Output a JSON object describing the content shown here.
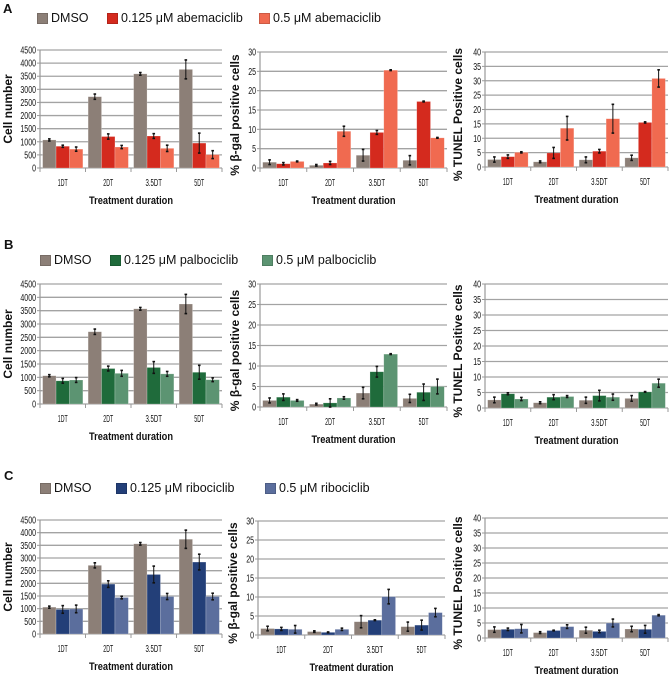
{
  "figure": {
    "panels": [
      {
        "label": "A",
        "legend": [
          {
            "name": "DMSO",
            "color": "#8c7f77"
          },
          {
            "name": "0.125 μM abemaciclib",
            "color": "#d42a1e"
          },
          {
            "name": "0.5 μM abemaciclib",
            "color": "#f06a50"
          }
        ]
      },
      {
        "label": "B",
        "legend": [
          {
            "name": "DMSO",
            "color": "#8c7f77"
          },
          {
            "name": "0.125 μM palbociclib",
            "color": "#1f6b3b"
          },
          {
            "name": "0.5 μM palbociclib",
            "color": "#5c9472"
          }
        ]
      },
      {
        "label": "C",
        "legend": [
          {
            "name": "DMSO",
            "color": "#8c7f77"
          },
          {
            "name": "0.125 μM ribociclib",
            "color": "#233f78"
          },
          {
            "name": "0.5 μM ribociclib",
            "color": "#5b6e9d"
          }
        ]
      }
    ]
  },
  "chart_data": [
    {
      "panel": "A",
      "type": "bar",
      "title": "",
      "xlabel": "Treatment duration",
      "ylabel": "Cell number",
      "categories": [
        "1DT",
        "2DT",
        "3.5DT",
        "5DT"
      ],
      "ylim": [
        0,
        4500
      ],
      "yticks": [
        0,
        500,
        1000,
        1500,
        2000,
        2500,
        3000,
        3500,
        4000,
        4500
      ],
      "grid": true,
      "legend": "top",
      "series": [
        {
          "name": "DMSO",
          "color": "#8c7f77",
          "values": [
            1070,
            2720,
            3590,
            3760
          ],
          "errors": [
            40,
            100,
            50,
            360
          ]
        },
        {
          "name": "0.125 μM abemaciclib",
          "color": "#d42a1e",
          "values": [
            830,
            1200,
            1220,
            950
          ],
          "errors": [
            40,
            100,
            90,
            380
          ]
        },
        {
          "name": "0.5 μM abemaciclib",
          "color": "#f06a50",
          "values": [
            720,
            800,
            750,
            510
          ],
          "errors": [
            80,
            60,
            120,
            150
          ]
        }
      ]
    },
    {
      "panel": "A",
      "type": "bar",
      "title": "",
      "xlabel": "Treatment duration",
      "ylabel": "% β-gal positive cells",
      "categories": [
        "1DT",
        "2DT",
        "3.5DT",
        "5DT"
      ],
      "ylim": [
        0,
        30
      ],
      "yticks": [
        0,
        5,
        10,
        15,
        20,
        25,
        30
      ],
      "grid": true,
      "legend": "top",
      "series": [
        {
          "name": "DMSO",
          "color": "#8c7f77",
          "values": [
            1.5,
            0.7,
            3.3,
            2.0
          ],
          "errors": [
            0.6,
            0.2,
            1.5,
            1.2
          ]
        },
        {
          "name": "0.125 μM abemaciclib",
          "color": "#d42a1e",
          "values": [
            1.1,
            1.3,
            9.2,
            17.2
          ],
          "errors": [
            0.3,
            0.4,
            0.5,
            0.1
          ]
        },
        {
          "name": "0.5 μM abemaciclib",
          "color": "#f06a50",
          "values": [
            1.7,
            9.5,
            25.3,
            7.8
          ],
          "errors": [
            0.1,
            1.3,
            0.1,
            0.1
          ]
        }
      ]
    },
    {
      "panel": "A",
      "type": "bar",
      "title": "",
      "xlabel": "Treatment duration",
      "ylabel": "% TUNEL Positive cells",
      "categories": [
        "1DT",
        "2DT",
        "3.5DT",
        "5DT"
      ],
      "ylim": [
        0,
        40
      ],
      "yticks": [
        0,
        5,
        10,
        15,
        20,
        25,
        30,
        35,
        40
      ],
      "grid": true,
      "legend": "top",
      "series": [
        {
          "name": "DMSO",
          "color": "#8c7f77",
          "values": [
            2.6,
            1.8,
            2.5,
            3.2
          ],
          "errors": [
            0.9,
            0.3,
            1.0,
            0.9
          ]
        },
        {
          "name": "0.125 μM abemaciclib",
          "color": "#d42a1e",
          "values": [
            3.6,
            4.9,
            5.5,
            15.5
          ],
          "errors": [
            0.6,
            1.9,
            0.6,
            0.2
          ]
        },
        {
          "name": "0.5 μM abemaciclib",
          "color": "#f06a50",
          "values": [
            5.1,
            13.5,
            16.8,
            30.8
          ],
          "errors": [
            0.2,
            4.1,
            5.0,
            3.0
          ]
        }
      ]
    },
    {
      "panel": "B",
      "type": "bar",
      "title": "",
      "xlabel": "Treatment duration",
      "ylabel": "Cell number",
      "categories": [
        "1DT",
        "2DT",
        "3.5DT",
        "5DT"
      ],
      "ylim": [
        0,
        4500
      ],
      "yticks": [
        0,
        500,
        1000,
        1500,
        2000,
        2500,
        3000,
        3500,
        4000,
        4500
      ],
      "grid": true,
      "legend": "top",
      "series": [
        {
          "name": "DMSO",
          "color": "#8c7f77",
          "values": [
            1060,
            2710,
            3570,
            3750
          ],
          "errors": [
            40,
            100,
            50,
            360
          ]
        },
        {
          "name": "0.125 μM palbociclib",
          "color": "#1f6b3b",
          "values": [
            870,
            1330,
            1370,
            1190
          ],
          "errors": [
            90,
            90,
            220,
            260
          ]
        },
        {
          "name": "0.5 μM palbociclib",
          "color": "#5c9472",
          "values": [
            900,
            1150,
            1130,
            910
          ],
          "errors": [
            90,
            110,
            90,
            70
          ]
        }
      ]
    },
    {
      "panel": "B",
      "type": "bar",
      "title": "",
      "xlabel": "Treatment duration",
      "ylabel": "% β-gal positive cells",
      "categories": [
        "1DT",
        "2DT",
        "3.5DT",
        "5DT"
      ],
      "ylim": [
        0,
        30
      ],
      "yticks": [
        0,
        5,
        10,
        15,
        20,
        25,
        30
      ],
      "grid": true,
      "legend": "top",
      "series": [
        {
          "name": "DMSO",
          "color": "#8c7f77",
          "values": [
            1.6,
            0.7,
            3.4,
            2.1
          ],
          "errors": [
            0.6,
            0.2,
            1.4,
            1.0
          ]
        },
        {
          "name": "0.125 μM palbociclib",
          "color": "#1f6b3b",
          "values": [
            2.4,
            1.0,
            8.6,
            3.6
          ],
          "errors": [
            0.8,
            1.0,
            1.3,
            2.0
          ]
        },
        {
          "name": "0.5 μM palbociclib",
          "color": "#5c9472",
          "values": [
            1.6,
            2.2,
            12.9,
            5.0
          ],
          "errors": [
            0.2,
            0.3,
            0.1,
            1.8
          ]
        }
      ]
    },
    {
      "panel": "B",
      "type": "bar",
      "title": "",
      "xlabel": "Treatment duration",
      "ylabel": "% TUNEL Positive cells",
      "categories": [
        "1DT",
        "2DT",
        "3.5DT",
        "5DT"
      ],
      "ylim": [
        0,
        40
      ],
      "yticks": [
        0,
        5,
        10,
        15,
        20,
        25,
        30,
        35,
        40
      ],
      "grid": true,
      "legend": "top",
      "series": [
        {
          "name": "DMSO",
          "color": "#8c7f77",
          "values": [
            2.6,
            1.7,
            2.5,
            3.1
          ],
          "errors": [
            0.9,
            0.3,
            1.0,
            0.9
          ]
        },
        {
          "name": "0.125 μM palbociclib",
          "color": "#1f6b3b",
          "values": [
            4.6,
            3.5,
            4.0,
            5.2
          ],
          "errors": [
            0.3,
            0.8,
            1.7,
            0.1
          ]
        },
        {
          "name": "0.5 μM palbociclib",
          "color": "#5c9472",
          "values": [
            2.9,
            3.7,
            3.5,
            8.0
          ],
          "errors": [
            0.5,
            0.3,
            1.0,
            1.3
          ]
        }
      ]
    },
    {
      "panel": "C",
      "type": "bar",
      "title": "",
      "xlabel": "Treatment duration",
      "ylabel": "Cell number",
      "categories": [
        "1DT",
        "2DT",
        "3.5DT",
        "5DT"
      ],
      "ylim": [
        0,
        4500
      ],
      "yticks": [
        0,
        500,
        1000,
        1500,
        2000,
        2500,
        3000,
        3500,
        4000,
        4500
      ],
      "grid": true,
      "legend": "top",
      "series": [
        {
          "name": "DMSO",
          "color": "#8c7f77",
          "values": [
            1060,
            2710,
            3560,
            3740
          ],
          "errors": [
            40,
            100,
            50,
            360
          ]
        },
        {
          "name": "0.125 μM ribociclib",
          "color": "#233f78",
          "values": [
            970,
            1970,
            2350,
            2840
          ],
          "errors": [
            150,
            130,
            330,
            310
          ]
        },
        {
          "name": "0.5 μM ribociclib",
          "color": "#5b6e9d",
          "values": [
            990,
            1440,
            1480,
            1480
          ],
          "errors": [
            150,
            50,
            120,
            130
          ]
        }
      ]
    },
    {
      "panel": "C",
      "type": "bar",
      "title": "",
      "xlabel": "Treatment duration",
      "ylabel": "% β-gal positive cells",
      "categories": [
        "1DT",
        "2DT",
        "3.5DT",
        "5DT"
      ],
      "ylim": [
        0,
        30
      ],
      "yticks": [
        0,
        5,
        10,
        15,
        20,
        25,
        30
      ],
      "grid": true,
      "legend": "top",
      "series": [
        {
          "name": "DMSO",
          "color": "#8c7f77",
          "values": [
            1.7,
            0.9,
            3.5,
            2.2
          ],
          "errors": [
            0.6,
            0.2,
            1.6,
            1.2
          ]
        },
        {
          "name": "0.125 μM ribociclib",
          "color": "#233f78",
          "values": [
            1.6,
            0.7,
            3.9,
            2.6
          ],
          "errors": [
            0.4,
            0.1,
            0.1,
            1.3
          ]
        },
        {
          "name": "0.5 μM ribociclib",
          "color": "#5b6e9d",
          "values": [
            1.5,
            1.5,
            10.1,
            5.9
          ],
          "errors": [
            1.0,
            0.3,
            1.9,
            1.1
          ]
        }
      ]
    },
    {
      "panel": "C",
      "type": "bar",
      "title": "",
      "xlabel": "Treatment duration",
      "ylabel": "% TUNEL Positive cells",
      "categories": [
        "1DT",
        "2DT",
        "3.5DT",
        "5DT"
      ],
      "ylim": [
        0,
        40
      ],
      "yticks": [
        0,
        5,
        10,
        15,
        20,
        25,
        30,
        35,
        40
      ],
      "grid": true,
      "legend": "top",
      "series": [
        {
          "name": "DMSO",
          "color": "#8c7f77",
          "values": [
            2.8,
            1.8,
            2.6,
            3.0
          ],
          "errors": [
            0.9,
            0.3,
            1.0,
            0.9
          ]
        },
        {
          "name": "0.125 μM ribociclib",
          "color": "#233f78",
          "values": [
            2.9,
            2.5,
            2.2,
            2.9
          ],
          "errors": [
            0.4,
            0.1,
            0.4,
            1.3
          ]
        },
        {
          "name": "0.5 μM ribociclib",
          "color": "#5b6e9d",
          "values": [
            3.1,
            3.8,
            5.0,
            7.6
          ],
          "errors": [
            1.4,
            0.6,
            1.3,
            0.2
          ]
        }
      ]
    }
  ]
}
